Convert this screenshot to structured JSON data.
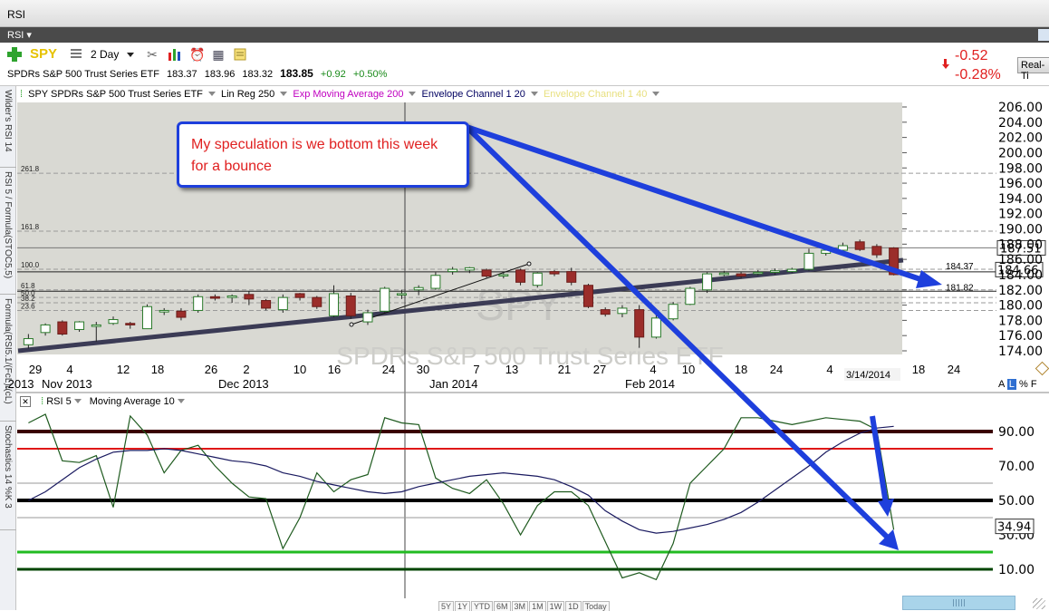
{
  "window": {
    "title": "RSI"
  },
  "panel": {
    "title": "RSI",
    "menu_icon": "chevron-down-icon"
  },
  "toolbar": {
    "symbol": "SPY",
    "period": "2 Day",
    "icons": [
      "add-plus-icon",
      "list-icon",
      "tools-icon",
      "chart-type-icon",
      "clock-icon",
      "calculator-icon",
      "notes-icon"
    ]
  },
  "quote": {
    "name": "SPDRs S&P 500 Trust Series ETF",
    "open": "183.37",
    "high": "183.96",
    "low": "183.32",
    "last": "183.85",
    "change": "+0.92",
    "change_pct": "+0.50%",
    "alert_change": "-0.52",
    "alert_change_pct": "-0.28%",
    "realtime_button": "Real-Ti",
    "colors": {
      "up": "#1a8a1a",
      "down": "#e02020"
    }
  },
  "side_tabs": [
    "Wilder's RSI 14",
    "RSI 5 / Formula(STOC5,5)",
    "Formula(RSI5.1/(FcL)/(cL)",
    "Stochastics 14 %K 3"
  ],
  "price_legend": [
    {
      "label": "SPY SPDRs S&P 500 Trust Series ETF",
      "color": "#000000"
    },
    {
      "label": "Lin Reg 250",
      "color": "#000000"
    },
    {
      "label": "Exp Moving Average 200",
      "color": "#c000c0"
    },
    {
      "label": "Envelope Channel 1 20",
      "color": "#000060"
    },
    {
      "label": "Envelope Channel 1 40",
      "color": "#e8e080"
    }
  ],
  "callout": {
    "text": "My speculation is we bottom this week for a bounce"
  },
  "watermark": {
    "symbol": "SPY",
    "name": "SPDRs S&P 500 Trust Series ETF"
  },
  "price_axis": {
    "ticks": [
      "206.00",
      "204.00",
      "202.00",
      "200.00",
      "198.00",
      "196.00",
      "194.00",
      "192.00",
      "190.00",
      "188.00",
      "186.00",
      "184.00",
      "182.00",
      "180.00",
      "178.00",
      "176.00",
      "174.00"
    ],
    "current": "187.51",
    "last_box": "184.66",
    "level_1": "184.37",
    "level_2": "181.82"
  },
  "fib_labels": [
    "261.8",
    "161.8",
    "100.0",
    "61.8",
    "50.0",
    "38.2",
    "23.6"
  ],
  "date_axis": {
    "days": [
      "29",
      "4",
      "12",
      "18",
      "26",
      "2",
      "10",
      "16",
      "24",
      "30",
      "7",
      "13",
      "21",
      "27",
      "4",
      "10",
      "18",
      "24",
      "4",
      "18",
      "24"
    ],
    "months": [
      ",2013",
      "Nov 2013",
      "Dec 2013",
      "Jan 2014",
      "Feb 2014"
    ],
    "current_date": "3/14/2014"
  },
  "scale_toggle": {
    "a": "A",
    "l": "L",
    "pct": "%",
    "f": "F"
  },
  "rsi_legend": [
    {
      "label": "RSI 5"
    },
    {
      "label": "Moving Average 10"
    }
  ],
  "rsi_axis": {
    "ticks": [
      "90.00",
      "70.00",
      "50.00",
      "30.00",
      "10.00"
    ],
    "current": "34.94"
  },
  "range_buttons": [
    "5Y",
    "1Y",
    "YTD",
    "6M",
    "3M",
    "1M",
    "1W",
    "1D",
    "Today"
  ],
  "chart_data": [
    {
      "type": "candlestick",
      "title": "SPY SPDRs S&P 500 Trust Series ETF",
      "period": "2 Day",
      "ylim": [
        173.5,
        207
      ],
      "x_labels": [
        "29",
        "4",
        "12",
        "18",
        "26",
        "2",
        "10",
        "16",
        "24",
        "30",
        "7",
        "13",
        "21",
        "27",
        "4",
        "10",
        "18",
        "24",
        "4",
        "18",
        "24"
      ],
      "candles": [
        {
          "o": 174.8,
          "h": 176.2,
          "l": 174.3,
          "c": 175.6
        },
        {
          "o": 176.4,
          "h": 177.6,
          "l": 176.0,
          "c": 177.4
        },
        {
          "o": 177.8,
          "h": 178.0,
          "l": 176.0,
          "c": 176.2
        },
        {
          "o": 176.8,
          "h": 177.9,
          "l": 176.5,
          "c": 177.8
        },
        {
          "o": 177.2,
          "h": 177.8,
          "l": 175.2,
          "c": 177.4
        },
        {
          "o": 177.6,
          "h": 178.5,
          "l": 177.4,
          "c": 178.1
        },
        {
          "o": 177.6,
          "h": 177.8,
          "l": 176.9,
          "c": 177.4
        },
        {
          "o": 176.9,
          "h": 180.1,
          "l": 176.9,
          "c": 179.8
        },
        {
          "o": 179.1,
          "h": 179.6,
          "l": 178.7,
          "c": 179.3
        },
        {
          "o": 179.2,
          "h": 179.6,
          "l": 178.0,
          "c": 178.4
        },
        {
          "o": 179.3,
          "h": 181.4,
          "l": 179.0,
          "c": 181.1
        },
        {
          "o": 181.1,
          "h": 181.4,
          "l": 180.6,
          "c": 180.9
        },
        {
          "o": 181.0,
          "h": 181.4,
          "l": 180.3,
          "c": 181.2
        },
        {
          "o": 181.4,
          "h": 181.8,
          "l": 180.0,
          "c": 180.8
        },
        {
          "o": 180.6,
          "h": 180.8,
          "l": 179.3,
          "c": 179.6
        },
        {
          "o": 179.4,
          "h": 181.4,
          "l": 179.0,
          "c": 181.0
        },
        {
          "o": 181.5,
          "h": 181.6,
          "l": 180.6,
          "c": 181.0
        },
        {
          "o": 181.0,
          "h": 181.2,
          "l": 179.5,
          "c": 179.8
        },
        {
          "o": 178.6,
          "h": 182.6,
          "l": 178.4,
          "c": 181.5
        },
        {
          "o": 181.2,
          "h": 181.6,
          "l": 178.2,
          "c": 178.6
        },
        {
          "o": 177.8,
          "h": 179.4,
          "l": 177.4,
          "c": 179.0
        },
        {
          "o": 179.2,
          "h": 182.4,
          "l": 179.0,
          "c": 182.2
        },
        {
          "o": 181.4,
          "h": 182.0,
          "l": 180.8,
          "c": 181.5
        },
        {
          "o": 182.0,
          "h": 182.6,
          "l": 181.3,
          "c": 182.3
        },
        {
          "o": 182.2,
          "h": 184.3,
          "l": 182.0,
          "c": 183.9
        },
        {
          "o": 184.4,
          "h": 185.0,
          "l": 184.0,
          "c": 184.7
        },
        {
          "o": 184.6,
          "h": 185.0,
          "l": 184.2,
          "c": 184.9
        },
        {
          "o": 184.6,
          "h": 184.8,
          "l": 183.6,
          "c": 183.8
        },
        {
          "o": 183.9,
          "h": 184.3,
          "l": 183.5,
          "c": 184.0
        },
        {
          "o": 184.6,
          "h": 184.8,
          "l": 182.6,
          "c": 183.0
        },
        {
          "o": 182.6,
          "h": 184.3,
          "l": 182.3,
          "c": 184.2
        },
        {
          "o": 184.4,
          "h": 184.6,
          "l": 183.8,
          "c": 184.1
        },
        {
          "o": 184.4,
          "h": 184.9,
          "l": 182.6,
          "c": 183.0
        },
        {
          "o": 182.6,
          "h": 182.8,
          "l": 179.6,
          "c": 179.8
        },
        {
          "o": 179.4,
          "h": 179.7,
          "l": 178.5,
          "c": 178.8
        },
        {
          "o": 178.9,
          "h": 180.0,
          "l": 178.4,
          "c": 179.6
        },
        {
          "o": 179.4,
          "h": 180.0,
          "l": 174.4,
          "c": 175.8
        },
        {
          "o": 175.8,
          "h": 178.7,
          "l": 175.6,
          "c": 178.3
        },
        {
          "o": 178.2,
          "h": 180.4,
          "l": 178.0,
          "c": 180.1
        },
        {
          "o": 180.1,
          "h": 182.4,
          "l": 180.0,
          "c": 182.2
        },
        {
          "o": 182.0,
          "h": 184.3,
          "l": 181.6,
          "c": 184.1
        },
        {
          "o": 184.0,
          "h": 184.5,
          "l": 183.8,
          "c": 184.2
        },
        {
          "o": 184.1,
          "h": 184.4,
          "l": 183.5,
          "c": 183.8
        },
        {
          "o": 184.2,
          "h": 184.6,
          "l": 183.9,
          "c": 184.3
        },
        {
          "o": 184.3,
          "h": 184.8,
          "l": 184.0,
          "c": 184.5
        },
        {
          "o": 184.4,
          "h": 184.9,
          "l": 184.2,
          "c": 184.7
        },
        {
          "o": 184.7,
          "h": 187.4,
          "l": 184.5,
          "c": 186.8
        },
        {
          "o": 186.8,
          "h": 187.6,
          "l": 186.5,
          "c": 187.2
        },
        {
          "o": 187.2,
          "h": 188.2,
          "l": 187.0,
          "c": 187.8
        },
        {
          "o": 188.3,
          "h": 188.6,
          "l": 187.1,
          "c": 187.3
        },
        {
          "o": 187.7,
          "h": 188.0,
          "l": 186.2,
          "c": 186.6
        },
        {
          "o": 187.5,
          "h": 187.6,
          "l": 183.9,
          "c": 184.0
        }
      ],
      "levels": {
        "current": 187.51,
        "last": 184.66,
        "l1": 184.37,
        "l2": 181.82
      },
      "fib_levels": [
        197.3,
        189.7,
        184.7,
        182.0,
        181.0,
        180.3,
        179.3
      ]
    },
    {
      "type": "line",
      "title": "RSI 5",
      "ylim": [
        0,
        100
      ],
      "series": [
        {
          "name": "RSI 5",
          "color": "#1e5a1e",
          "values": [
            95,
            100,
            73,
            72,
            76,
            46,
            99,
            88,
            66,
            79,
            82,
            70,
            60,
            52,
            51,
            22,
            40,
            66,
            55,
            62,
            65,
            98,
            95,
            94,
            63,
            57,
            54,
            62,
            48,
            30,
            47,
            55,
            55,
            47,
            26,
            5,
            8,
            4,
            25,
            60,
            70,
            80,
            98,
            98,
            96,
            94,
            96,
            98,
            97,
            96,
            91,
            33
          ]
        },
        {
          "name": "Moving Average 10",
          "color": "#1a1a60",
          "values": [
            50,
            55,
            62,
            69,
            74,
            78,
            79,
            79,
            80,
            79,
            77,
            75,
            73,
            72,
            70,
            66,
            64,
            61,
            59,
            57,
            55,
            54,
            55,
            58,
            60,
            62,
            64,
            65,
            66,
            65,
            64,
            62,
            58,
            53,
            44,
            38,
            33,
            31,
            32,
            34,
            36,
            39,
            43,
            49,
            56,
            63,
            70,
            78,
            84,
            89,
            92,
            93
          ]
        }
      ],
      "levels": [
        90,
        80,
        50,
        20,
        10
      ],
      "current": 34.94
    }
  ]
}
